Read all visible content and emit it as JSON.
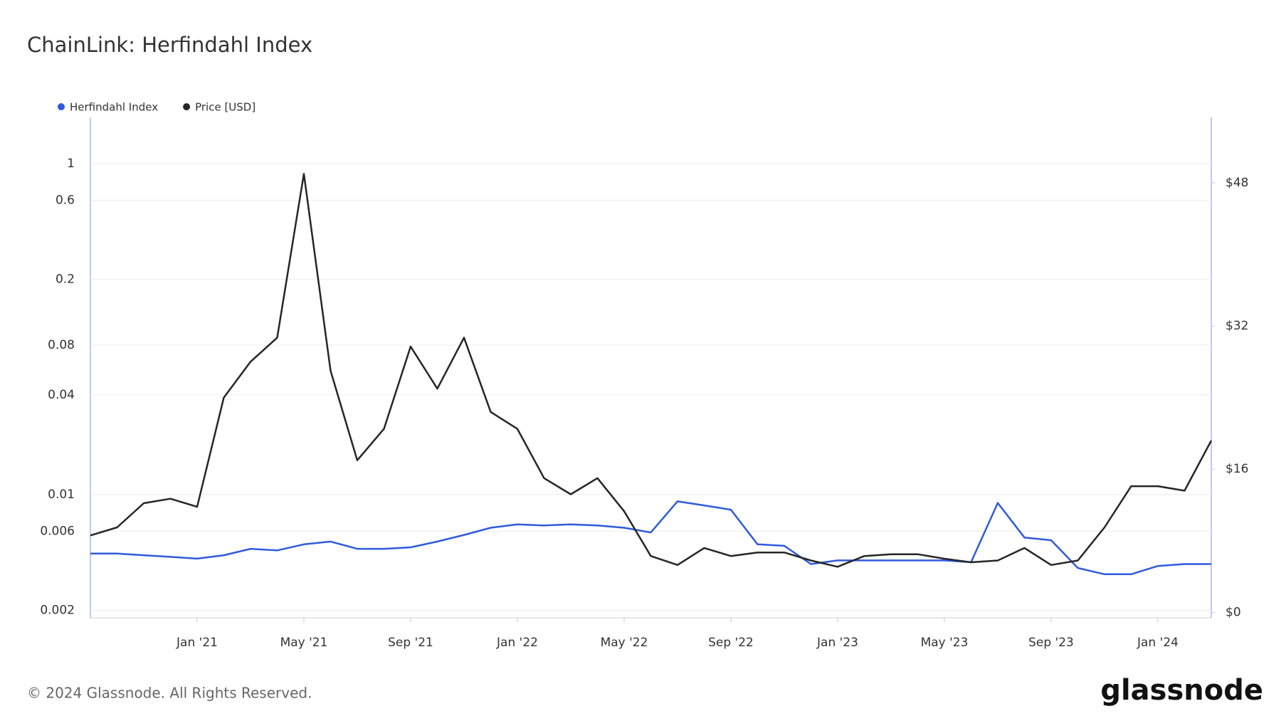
{
  "chart_data": {
    "type": "line",
    "title": "ChainLink: Herfindahl Index",
    "footer": "© 2024 Glassnode. All Rights Reserved.",
    "logo": "glassnode",
    "x": [
      "2020-09",
      "2020-10",
      "2020-11",
      "2020-12",
      "2021-01",
      "2021-02",
      "2021-03",
      "2021-04",
      "2021-05",
      "2021-06",
      "2021-07",
      "2021-08",
      "2021-09",
      "2021-10",
      "2021-11",
      "2021-12",
      "2022-01",
      "2022-02",
      "2022-03",
      "2022-04",
      "2022-05",
      "2022-06",
      "2022-07",
      "2022-08",
      "2022-09",
      "2022-10",
      "2022-11",
      "2022-12",
      "2023-01",
      "2023-02",
      "2023-03",
      "2023-04",
      "2023-05",
      "2023-06",
      "2023-07",
      "2023-08",
      "2023-09",
      "2023-10",
      "2023-11",
      "2023-12",
      "2024-01",
      "2024-02",
      "2024-03"
    ],
    "xlim": [
      "2020-09",
      "2024-03"
    ],
    "xticks": [
      {
        "value": "2021-01",
        "label": "Jan '21"
      },
      {
        "value": "2021-05",
        "label": "May '21"
      },
      {
        "value": "2021-09",
        "label": "Sep '21"
      },
      {
        "value": "2022-01",
        "label": "Jan '22"
      },
      {
        "value": "2022-05",
        "label": "May '22"
      },
      {
        "value": "2022-09",
        "label": "Sep '22"
      },
      {
        "value": "2023-01",
        "label": "Jan '23"
      },
      {
        "value": "2023-05",
        "label": "May '23"
      },
      {
        "value": "2023-09",
        "label": "Sep '23"
      },
      {
        "value": "2024-01",
        "label": "Jan '24"
      }
    ],
    "ylim": [
      0.0018,
      1.9
    ],
    "yscale": "log",
    "yticks": [
      0.002,
      0.006,
      0.01,
      0.04,
      0.08,
      0.2,
      0.6,
      1
    ],
    "y2lim": [
      -0.6,
      55.3
    ],
    "y2ticks": [
      {
        "value": 0,
        "label": "$0"
      },
      {
        "value": 16,
        "label": "$16"
      },
      {
        "value": 32,
        "label": "$32"
      },
      {
        "value": 48,
        "label": "$48"
      }
    ],
    "grid": true,
    "series": [
      {
        "name": "Herfindahl Index",
        "color": "#2f5bdb",
        "axis": "y",
        "values": [
          0.0044,
          0.0044,
          0.0043,
          0.0042,
          0.0041,
          0.0043,
          0.0047,
          0.0046,
          0.005,
          0.0052,
          0.0047,
          0.0047,
          0.0048,
          0.0052,
          0.0057,
          0.0063,
          0.0066,
          0.0065,
          0.0066,
          0.0065,
          0.0063,
          0.0059,
          0.0091,
          0.0086,
          0.0081,
          0.005,
          0.0049,
          0.0038,
          0.004,
          0.004,
          0.004,
          0.004,
          0.004,
          0.0039,
          0.0089,
          0.0055,
          0.0053,
          0.0036,
          0.0033,
          0.0033,
          0.0037,
          0.0038,
          0.0038
        ]
      },
      {
        "name": "Price [USD]",
        "color": "#262626",
        "axis": "y2",
        "values": [
          8.6,
          9.5,
          12.2,
          12.7,
          11.8,
          24,
          28,
          30.7,
          49,
          27,
          17,
          20.5,
          29.7,
          25,
          30.7,
          22.4,
          20.5,
          15,
          13.2,
          15,
          11.3,
          6.3,
          5.3,
          7.2,
          6.3,
          6.7,
          6.7,
          5.8,
          5.1,
          6.3,
          6.5,
          6.5,
          6.0,
          5.6,
          5.8,
          7.2,
          5.3,
          5.8,
          9.5,
          14.1,
          14.1,
          13.6,
          19.2
        ]
      }
    ]
  }
}
